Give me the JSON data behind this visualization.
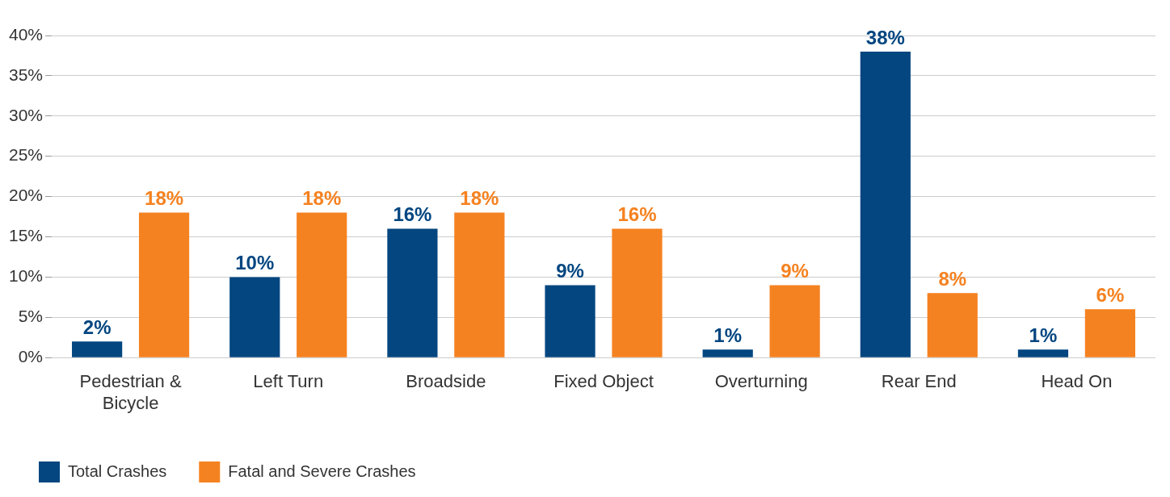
{
  "chart_data": {
    "type": "bar",
    "categories": [
      "Pedestrian & Bicycle",
      "Left Turn",
      "Broadside",
      "Fixed Object",
      "Overturning",
      "Rear End",
      "Head On"
    ],
    "series": [
      {
        "name": "Total Crashes",
        "color": "#034680",
        "values": [
          2,
          10,
          16,
          9,
          1,
          38,
          1
        ],
        "value_labels": [
          "2%",
          "10%",
          "16%",
          "9%",
          "1%",
          "38%",
          "1%"
        ]
      },
      {
        "name": "Fatal and Severe Crashes",
        "color": "#f58220",
        "values": [
          18,
          18,
          18,
          16,
          9,
          8,
          6
        ],
        "value_labels": [
          "18%",
          "18%",
          "18%",
          "16%",
          "9%",
          "8%",
          "6%"
        ]
      }
    ],
    "ylim": [
      0,
      40
    ],
    "yticks": [
      {
        "value": 0,
        "label": "0%"
      },
      {
        "value": 5,
        "label": "5%"
      },
      {
        "value": 10,
        "label": "10%"
      },
      {
        "value": 15,
        "label": "15%"
      },
      {
        "value": 20,
        "label": "20%"
      },
      {
        "value": 25,
        "label": "25%"
      },
      {
        "value": 30,
        "label": "30%"
      },
      {
        "value": 35,
        "label": "35%"
      },
      {
        "value": 40,
        "label": "40%"
      }
    ],
    "grid": "y",
    "legend": "bottom left"
  }
}
